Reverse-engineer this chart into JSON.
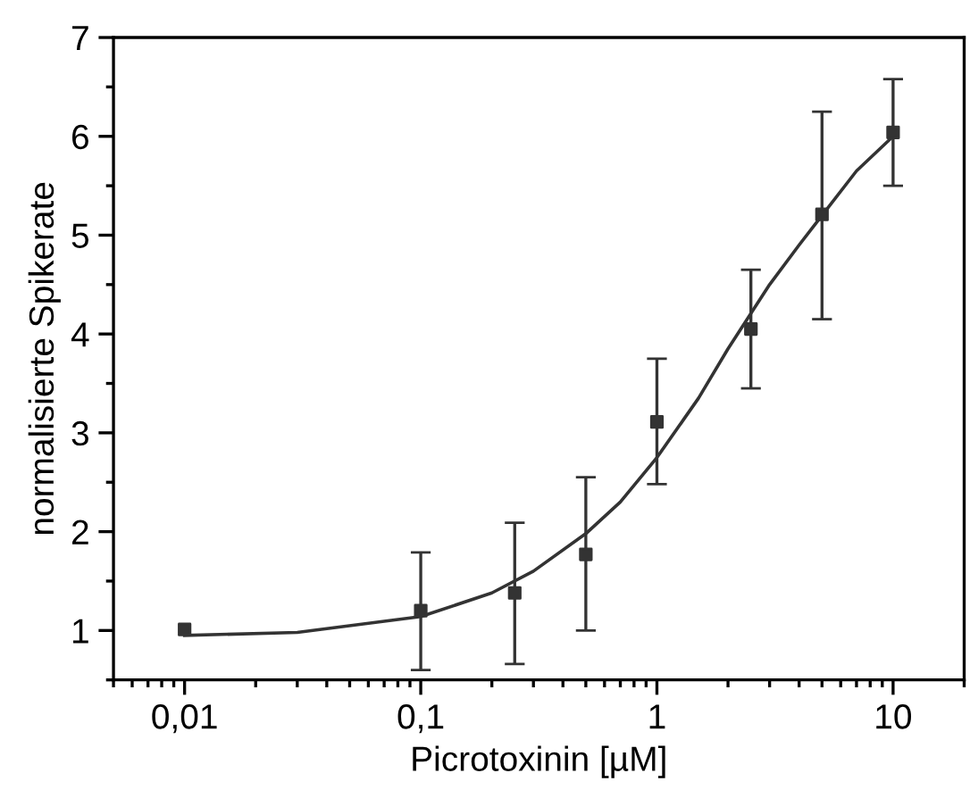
{
  "chart_data": {
    "type": "scatter",
    "xlabel": "Picrotoxinin [µM]",
    "ylabel": "normalisierte Spikerate",
    "log": "x",
    "xlim": [
      0.005,
      20
    ],
    "ylim": [
      0.5,
      7
    ],
    "xticks": [
      {
        "value": 0.01,
        "label": "0,01"
      },
      {
        "value": 0.1,
        "label": "0,1"
      },
      1,
      10
    ],
    "yticks": [
      1,
      2,
      3,
      4,
      5,
      6,
      7
    ],
    "grid": false,
    "legend": false,
    "series": [
      {
        "color": "#333333",
        "marker": "square",
        "x": [
          0.01,
          0.1,
          0.25,
          0.5,
          1,
          2.5,
          5,
          10
        ],
        "values": [
          1.01,
          1.2,
          1.38,
          1.77,
          3.11,
          4.05,
          5.21,
          6.04
        ],
        "errors": [
          null,
          [
            0.6,
            1.79
          ],
          [
            0.66,
            2.09
          ],
          [
            1.0,
            2.55
          ],
          [
            2.48,
            3.75
          ],
          [
            3.45,
            4.65
          ],
          [
            4.15,
            6.25
          ],
          [
            5.5,
            6.58
          ]
        ]
      },
      {
        "type": "line",
        "color": "#333333",
        "line_style": "solid",
        "marker": "none",
        "x": [
          0.01,
          0.03,
          0.1,
          0.2,
          0.3,
          0.5,
          0.7,
          1,
          1.5,
          2,
          3,
          4,
          5,
          7,
          10
        ],
        "values": [
          0.95,
          0.98,
          1.14,
          1.38,
          1.6,
          1.98,
          2.3,
          2.75,
          3.35,
          3.85,
          4.5,
          4.9,
          5.2,
          5.65,
          6.0
        ]
      }
    ]
  }
}
